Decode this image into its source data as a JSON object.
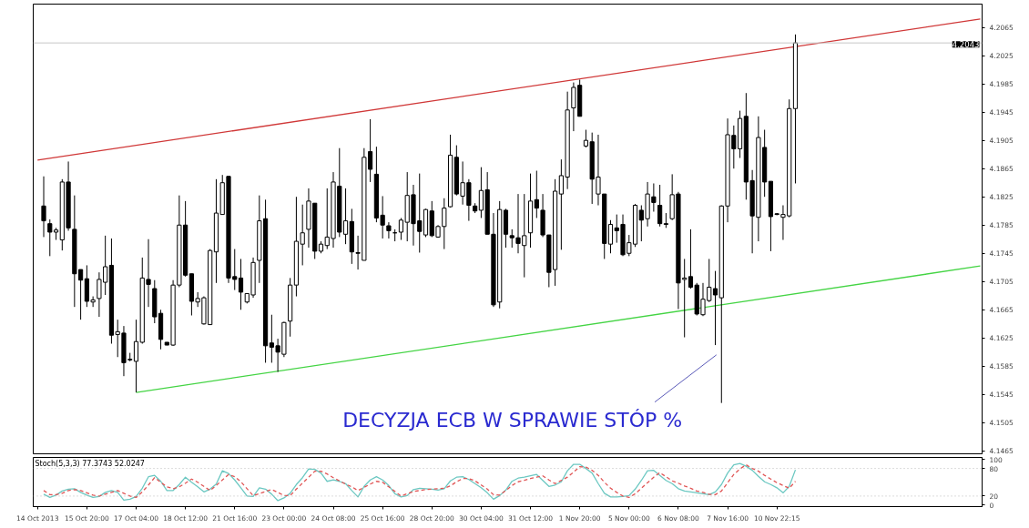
{
  "chart_data": [
    {
      "type": "candlestick",
      "tick_labels": "y",
      "grid": false,
      "ylim": [
        4.1461,
        4.2098
      ],
      "categories": [
        null,
        null,
        null,
        null,
        null,
        null,
        null,
        null,
        null,
        null,
        null,
        null,
        null,
        null,
        null,
        null,
        null,
        null,
        null,
        null,
        null,
        null,
        null,
        null,
        null,
        null,
        null,
        null,
        null,
        null,
        null,
        null,
        null,
        null,
        null,
        null,
        null,
        null,
        null,
        null,
        null,
        null,
        null,
        null,
        null,
        null,
        null,
        null,
        null,
        null,
        null,
        null,
        null,
        null,
        null,
        null,
        null,
        null,
        null,
        null,
        null,
        null,
        null,
        null,
        null,
        null,
        null,
        null,
        null,
        null,
        null,
        null,
        null,
        null,
        null,
        null,
        null,
        null,
        null,
        null,
        null,
        null,
        null,
        null,
        null,
        null,
        null,
        null,
        null,
        null,
        null,
        null,
        null,
        null,
        null,
        null,
        null,
        null,
        null,
        null,
        null,
        null,
        null,
        null,
        null,
        null,
        null,
        null,
        null,
        null,
        null,
        null,
        null,
        null,
        null,
        null,
        null,
        null,
        null,
        null,
        null,
        null,
        null,
        null,
        null,
        null,
        null,
        null,
        null,
        null,
        null,
        null,
        null,
        null,
        null,
        null,
        null,
        null,
        null,
        null,
        null,
        null,
        null,
        null,
        null,
        null,
        null,
        null,
        null,
        null,
        null,
        null,
        null,
        null
      ],
      "yticks": [
        4.2065,
        4.2025,
        4.1985,
        4.1945,
        4.1905,
        4.1865,
        4.1825,
        4.1785,
        4.1745,
        4.1705,
        4.1665,
        4.1625,
        4.1585,
        4.1545,
        4.1505,
        4.1465
      ],
      "ohlc": [
        null,
        [
          4.1812,
          4.1854,
          4.1768,
          4.1791
        ],
        [
          4.1787,
          4.1793,
          4.1741,
          4.1775
        ],
        [
          4.1775,
          4.1781,
          4.1764,
          4.1778
        ],
        [
          4.1764,
          4.185,
          4.1749,
          4.1846
        ],
        [
          4.1846,
          4.1875,
          4.1777,
          4.1781
        ],
        [
          4.1779,
          4.1827,
          4.1669,
          4.1716
        ],
        [
          4.1722,
          4.1722,
          4.1651,
          4.1707
        ],
        [
          4.1709,
          4.1728,
          4.1669,
          4.1677
        ],
        [
          4.1676,
          4.1684,
          4.1669,
          4.1679
        ],
        [
          4.1681,
          4.1718,
          4.1655,
          4.1708
        ],
        [
          4.1704,
          4.177,
          4.1686,
          4.1726
        ],
        [
          4.1728,
          4.1766,
          4.1617,
          4.1629
        ],
        [
          4.163,
          4.1651,
          4.1598,
          4.1634
        ],
        [
          4.1632,
          4.1642,
          4.1571,
          4.159
        ],
        [
          4.1594,
          4.1604,
          4.1592,
          4.1595
        ],
        [
          4.1592,
          4.1651,
          4.1548,
          4.162
        ],
        [
          4.1619,
          4.1739,
          4.1617,
          4.171
        ],
        [
          4.1708,
          4.1765,
          4.1669,
          4.1701
        ],
        [
          4.1695,
          4.1707,
          4.1646,
          4.1655
        ],
        [
          4.166,
          4.1665,
          4.1609,
          4.1623
        ],
        [
          4.1619,
          4.1619,
          4.1615,
          4.1615
        ],
        [
          4.1615,
          4.1707,
          4.1614,
          4.17
        ],
        [
          4.17,
          4.1827,
          4.1697,
          4.1785
        ],
        [
          4.1785,
          4.1819,
          4.1712,
          4.1714
        ],
        [
          4.1716,
          4.1716,
          4.1657,
          4.1677
        ],
        [
          4.1676,
          4.169,
          4.1669,
          4.1681
        ],
        [
          4.1645,
          4.1684,
          4.1644,
          4.1682
        ],
        [
          4.1644,
          4.1751,
          4.1644,
          4.1749
        ],
        [
          4.1747,
          4.185,
          4.1703,
          4.1802
        ],
        [
          4.18,
          4.1856,
          4.18,
          4.1845
        ],
        [
          4.1854,
          4.1854,
          4.1703,
          4.171
        ],
        [
          4.1712,
          4.1751,
          4.1693,
          4.1708
        ],
        [
          4.171,
          4.1737,
          4.1665,
          4.169
        ],
        [
          4.1676,
          4.1688,
          4.1674,
          4.1688
        ],
        [
          4.1686,
          4.1739,
          4.1682,
          4.1732
        ],
        [
          4.1735,
          4.1827,
          4.1703,
          4.1791
        ],
        [
          4.1794,
          4.1821,
          4.159,
          4.1614
        ],
        [
          4.1618,
          4.1658,
          4.159,
          4.1612
        ],
        [
          4.1614,
          4.1624,
          4.1577,
          4.1605
        ],
        [
          4.1602,
          4.1648,
          4.1598,
          4.1647
        ],
        [
          4.1649,
          4.171,
          4.1627,
          4.17
        ],
        [
          4.17,
          4.1825,
          4.1684,
          4.1762
        ],
        [
          4.1758,
          4.1814,
          4.1728,
          4.1774
        ],
        [
          4.1779,
          4.1837,
          4.1753,
          4.1819
        ],
        [
          4.1816,
          4.1816,
          4.1737,
          4.1748
        ],
        [
          4.1748,
          4.1762,
          4.1745,
          4.1758
        ],
        [
          4.1756,
          4.1837,
          4.1751,
          4.1768
        ],
        [
          4.1766,
          4.186,
          4.1753,
          4.1846
        ],
        [
          4.184,
          4.1894,
          4.1768,
          4.1775
        ],
        [
          4.1772,
          4.1837,
          4.1758,
          4.1791
        ],
        [
          4.179,
          4.1808,
          4.173,
          4.1747
        ],
        [
          4.1746,
          4.177,
          4.1722,
          4.1745
        ],
        [
          4.1735,
          4.1894,
          4.1735,
          4.1881
        ],
        [
          4.1889,
          4.1935,
          4.1846,
          4.1864
        ],
        [
          4.1857,
          4.1896,
          4.1789,
          4.1795
        ],
        [
          4.1799,
          4.1826,
          4.1766,
          4.1785
        ],
        [
          4.1784,
          4.1789,
          4.1766,
          4.1777
        ],
        [
          4.1774,
          4.1779,
          4.1762,
          4.1774
        ],
        [
          4.1775,
          4.1795,
          4.1764,
          4.1792
        ],
        [
          4.1789,
          4.186,
          4.1762,
          4.1827
        ],
        [
          4.1828,
          4.1842,
          4.1756,
          4.1787
        ],
        [
          4.1791,
          4.1858,
          4.1746,
          4.1776
        ],
        [
          4.1771,
          4.1808,
          4.1768,
          4.1807
        ],
        [
          4.1805,
          4.1819,
          4.1768,
          4.177
        ],
        [
          4.1768,
          4.1785,
          4.1767,
          4.1783
        ],
        [
          4.1783,
          4.1823,
          4.1751,
          4.1809
        ],
        [
          4.1811,
          4.1913,
          4.181,
          4.1884
        ],
        [
          4.1881,
          4.1898,
          4.1827,
          4.1829
        ],
        [
          4.1826,
          4.1875,
          4.1814,
          4.1845
        ],
        [
          4.1845,
          4.185,
          4.1791,
          4.1813
        ],
        [
          4.1812,
          4.1816,
          4.1802,
          4.1805
        ],
        [
          4.1806,
          4.1867,
          4.1795,
          4.1834
        ],
        [
          4.1835,
          4.186,
          4.1772,
          4.1772
        ],
        [
          4.1772,
          4.1802,
          4.1669,
          4.1672
        ],
        [
          4.1676,
          4.1819,
          4.1667,
          4.1807
        ],
        [
          4.1806,
          4.1808,
          4.1753,
          4.1772
        ],
        [
          4.177,
          4.1779,
          4.1753,
          4.1767
        ],
        [
          4.1767,
          4.1829,
          4.1745,
          4.1759
        ],
        [
          4.1756,
          4.1829,
          4.1711,
          4.177
        ],
        [
          4.1774,
          4.1858,
          4.1753,
          4.1819
        ],
        [
          4.1821,
          4.1862,
          4.1795,
          4.1809
        ],
        [
          4.1806,
          4.1829,
          4.1768,
          4.1771
        ],
        [
          4.1771,
          4.1771,
          4.1697,
          4.1718
        ],
        [
          4.1722,
          4.185,
          4.1699,
          4.1833
        ],
        [
          4.1829,
          4.1878,
          4.175,
          4.1855
        ],
        [
          4.1853,
          4.1974,
          4.1836,
          4.1948
        ],
        [
          4.1951,
          4.1987,
          4.1918,
          4.198
        ],
        [
          4.1983,
          4.1991,
          4.1939,
          4.1939
        ],
        [
          4.1897,
          4.192,
          4.1895,
          4.1905
        ],
        [
          4.1903,
          4.1916,
          4.1815,
          4.185
        ],
        [
          4.1829,
          4.1913,
          4.1813,
          4.1853
        ],
        [
          4.1829,
          4.1829,
          4.1737,
          4.1759
        ],
        [
          4.1758,
          4.1792,
          4.1745,
          4.1786
        ],
        [
          4.1781,
          4.18,
          4.176,
          4.1777
        ],
        [
          4.1786,
          4.18,
          4.1741,
          4.1743
        ],
        [
          4.1745,
          4.1771,
          4.1741,
          4.176
        ],
        [
          4.1758,
          4.1815,
          4.1754,
          4.1813
        ],
        [
          4.1806,
          4.1813,
          4.1762,
          4.1792
        ],
        [
          4.1794,
          4.1846,
          4.1783,
          4.1829
        ],
        [
          4.1825,
          4.1844,
          4.1804,
          4.1817
        ],
        [
          4.1813,
          4.1842,
          4.1783,
          4.1787
        ],
        [
          4.1787,
          4.1802,
          4.1781,
          4.1786
        ],
        [
          4.1794,
          4.1857,
          4.1792,
          4.1828
        ],
        [
          4.1829,
          4.1832,
          4.1666,
          4.1703
        ],
        [
          4.1708,
          4.1737,
          4.1626,
          4.171
        ],
        [
          4.1712,
          4.1779,
          4.1695,
          4.1697
        ],
        [
          4.17,
          4.1703,
          4.1657,
          4.1659
        ],
        [
          4.1658,
          4.1703,
          4.1656,
          4.168
        ],
        [
          4.1678,
          4.1737,
          4.1676,
          4.1697
        ],
        [
          4.1695,
          4.172,
          4.1615,
          4.1686
        ],
        [
          4.1682,
          4.1813,
          4.1533,
          4.1812
        ],
        [
          4.1812,
          4.1936,
          4.1789,
          4.1913
        ],
        [
          4.1912,
          4.1926,
          4.1865,
          4.1893
        ],
        [
          4.1893,
          4.1947,
          4.188,
          4.1936
        ],
        [
          4.1939,
          4.1972,
          4.1821,
          4.1846
        ],
        [
          4.1848,
          4.1863,
          4.1745,
          4.1798
        ],
        [
          4.1796,
          4.1939,
          4.1762,
          4.1909
        ],
        [
          4.1895,
          4.192,
          4.1825,
          4.1846
        ],
        [
          4.1847,
          4.1847,
          4.1748,
          4.1797
        ],
        [
          4.1801,
          4.1802,
          4.1799,
          4.18
        ],
        [
          4.1796,
          4.1813,
          4.1764,
          4.18
        ],
        [
          4.1798,
          4.1963,
          4.1796,
          4.195
        ],
        [
          4.195,
          4.2055,
          4.1844,
          4.2043
        ],
        null,
        null,
        null,
        null,
        null,
        null,
        null,
        null,
        null,
        null,
        null,
        null,
        null,
        null,
        null,
        null,
        null,
        null,
        null,
        null,
        null,
        null,
        null,
        null,
        null,
        null,
        null,
        null,
        null,
        null
      ],
      "series": [
        {
          "type": "line",
          "color": "#d03838",
          "values": [
            4.1877,
            null,
            null,
            null,
            null,
            null,
            null,
            null,
            null,
            null,
            null,
            null,
            null,
            null,
            null,
            null,
            null,
            null,
            null,
            null,
            null,
            null,
            null,
            null,
            null,
            null,
            null,
            null,
            null,
            null,
            null,
            null,
            null,
            null,
            null,
            null,
            null,
            null,
            null,
            null,
            null,
            null,
            null,
            null,
            null,
            null,
            null,
            null,
            null,
            null,
            null,
            null,
            null,
            null,
            null,
            null,
            null,
            null,
            null,
            null,
            null,
            null,
            null,
            null,
            null,
            null,
            null,
            null,
            null,
            null,
            null,
            null,
            null,
            null,
            null,
            null,
            null,
            null,
            null,
            null,
            null,
            null,
            null,
            null,
            null,
            null,
            null,
            null,
            null,
            null,
            null,
            null,
            null,
            null,
            null,
            null,
            null,
            null,
            null,
            null,
            null,
            null,
            null,
            null,
            null,
            null,
            null,
            null,
            null,
            null,
            null,
            null,
            null,
            null,
            null,
            null,
            null,
            null,
            null,
            null,
            null,
            null,
            null,
            null,
            null,
            null,
            null,
            null,
            null,
            null,
            null,
            null,
            null,
            null,
            null,
            null,
            null,
            null,
            null,
            null,
            null,
            null,
            null,
            null,
            null,
            null,
            null,
            null,
            null,
            null,
            null,
            null,
            null,
            4.2077
          ]
        },
        {
          "type": "line",
          "color": "#44d444",
          "values": [
            null,
            null,
            null,
            null,
            null,
            null,
            null,
            null,
            null,
            null,
            null,
            null,
            null,
            null,
            null,
            null,
            4.1548,
            null,
            null,
            null,
            null,
            null,
            null,
            null,
            null,
            null,
            null,
            null,
            null,
            null,
            null,
            null,
            null,
            null,
            null,
            null,
            null,
            null,
            null,
            null,
            null,
            null,
            null,
            null,
            null,
            null,
            null,
            null,
            null,
            null,
            null,
            null,
            null,
            null,
            null,
            null,
            null,
            null,
            null,
            null,
            null,
            null,
            null,
            null,
            null,
            null,
            null,
            null,
            null,
            null,
            null,
            null,
            null,
            null,
            null,
            null,
            null,
            null,
            null,
            null,
            null,
            null,
            null,
            null,
            null,
            null,
            null,
            null,
            null,
            null,
            null,
            null,
            null,
            null,
            null,
            null,
            null,
            null,
            null,
            null,
            null,
            null,
            null,
            null,
            null,
            null,
            null,
            null,
            null,
            null,
            null,
            null,
            null,
            null,
            null,
            null,
            null,
            null,
            null,
            null,
            null,
            null,
            null,
            null,
            null,
            null,
            null,
            null,
            null,
            null,
            null,
            null,
            null,
            null,
            null,
            null,
            null,
            null,
            null,
            null,
            null,
            null,
            null,
            null,
            null,
            null,
            null,
            null,
            null,
            null,
            null,
            null,
            null,
            4.1727
          ]
        }
      ],
      "ref_lines": [
        {
          "axis": "y",
          "value": 4.2043,
          "label": "4.2043",
          "color": "#c8c8c8",
          "line_style": "solid"
        }
      ],
      "annotations": [
        "DECYZJA ECB W SPRAWIE STÓP %"
      ]
    },
    {
      "type": "line",
      "title": "Stoch(5,3,3) 77.3743 52.0247",
      "grid": false,
      "ylim": [
        -3,
        104
      ],
      "categories": [
        "14 Oct 2013",
        null,
        null,
        null,
        null,
        null,
        null,
        null,
        "15 Oct 20:00",
        null,
        null,
        null,
        null,
        null,
        null,
        null,
        "17 Oct 04:00",
        null,
        null,
        null,
        null,
        null,
        null,
        null,
        "18 Oct 12:00",
        null,
        null,
        null,
        null,
        null,
        null,
        null,
        "21 Oct 16:00",
        null,
        null,
        null,
        null,
        null,
        null,
        null,
        "23 Oct 00:00",
        null,
        null,
        null,
        null,
        null,
        null,
        null,
        "24 Oct 08:00",
        null,
        null,
        null,
        null,
        null,
        null,
        null,
        "25 Oct 16:00",
        null,
        null,
        null,
        null,
        null,
        null,
        null,
        "28 Oct 20:00",
        null,
        null,
        null,
        null,
        null,
        null,
        null,
        "30 Oct 04:00",
        null,
        null,
        null,
        null,
        null,
        null,
        null,
        "31 Oct 12:00",
        null,
        null,
        null,
        null,
        null,
        null,
        null,
        "1 Nov 20:00",
        null,
        null,
        null,
        null,
        null,
        null,
        null,
        "5 Nov 00:00",
        null,
        null,
        null,
        null,
        null,
        null,
        null,
        "6 Nov 08:00",
        null,
        null,
        null,
        null,
        null,
        null,
        null,
        "7 Nov 16:00",
        null,
        null,
        null,
        null,
        null,
        null,
        null,
        "10 Nov 22:15",
        null,
        null,
        null,
        null,
        null,
        null,
        null,
        null,
        null,
        null,
        null,
        null,
        null,
        null,
        null,
        null,
        null,
        null,
        null,
        null,
        null,
        null,
        null,
        null,
        null,
        null,
        null,
        null,
        null,
        null,
        null,
        null,
        null
      ],
      "yticks": [
        100,
        80,
        20,
        0
      ],
      "series": [
        {
          "color": "#6cc8c2",
          "line_style": "solid",
          "values": [
            null,
            24,
            17,
            22,
            31,
            35,
            36,
            28,
            22,
            17,
            19,
            28,
            32,
            28,
            11,
            13,
            19,
            37,
            62,
            65,
            52,
            32,
            32,
            45,
            61,
            50,
            40,
            29,
            35,
            46,
            75,
            69,
            55,
            38,
            20,
            19,
            38,
            35,
            24,
            10,
            16,
            26,
            45,
            60,
            79,
            78,
            70,
            52,
            55,
            52,
            47,
            32,
            18,
            41,
            55,
            62,
            55,
            43,
            25,
            18,
            21,
            34,
            37,
            36,
            35,
            33,
            36,
            53,
            61,
            62,
            56,
            47,
            38,
            27,
            13,
            21,
            33,
            52,
            59,
            61,
            64,
            67,
            54,
            41,
            44,
            51,
            75,
            89,
            89,
            80,
            70,
            47,
            26,
            18,
            18,
            19,
            21,
            35,
            54,
            75,
            76,
            65,
            54,
            47,
            36,
            31,
            29,
            27,
            25,
            23,
            29,
            45,
            70,
            88,
            91,
            85,
            76,
            63,
            51,
            45,
            38,
            27,
            41,
            77,
            null,
            null,
            null,
            null,
            null,
            null,
            null,
            null,
            null,
            null,
            null,
            null,
            null,
            null,
            null,
            null,
            null,
            null,
            null,
            null,
            null,
            null,
            null,
            null,
            null,
            null,
            null,
            null,
            null,
            null
          ]
        },
        {
          "color": "#e05555",
          "line_style": "dashed",
          "values": [
            null,
            32,
            23,
            23,
            26,
            32,
            34,
            32,
            27,
            22,
            20,
            24,
            28,
            32,
            26,
            20,
            17,
            29,
            44,
            60,
            50,
            40,
            36,
            40,
            48,
            57,
            50,
            41,
            32,
            43,
            55,
            67,
            62,
            51,
            36,
            21,
            25,
            30,
            34,
            28,
            21,
            21,
            35,
            48,
            61,
            74,
            74,
            68,
            60,
            53,
            46,
            40,
            32,
            39,
            46,
            52,
            50,
            40,
            30,
            20,
            25,
            30,
            32,
            34,
            35,
            36,
            37,
            42,
            51,
            58,
            58,
            53,
            44,
            35,
            23,
            22,
            32,
            43,
            51,
            54,
            58,
            61,
            64,
            55,
            47,
            54,
            61,
            72,
            84,
            83,
            76,
            65,
            50,
            37,
            28,
            20,
            17,
            25,
            37,
            49,
            61,
            71,
            62,
            53,
            48,
            42,
            37,
            31,
            28,
            24,
            23,
            31,
            49,
            67,
            79,
            88,
            80,
            74,
            65,
            57,
            49,
            43,
            37,
            52,
            null,
            null,
            null,
            null,
            null,
            null,
            null,
            null,
            null,
            null,
            null,
            null,
            null,
            null,
            null,
            null,
            null,
            null,
            null,
            null,
            null,
            null,
            null,
            null,
            null,
            null,
            null,
            null,
            null,
            null
          ]
        }
      ],
      "ref_lines": [
        {
          "axis": "y",
          "value": 80,
          "color": "#b8b8b8",
          "line_style": "dotted"
        },
        {
          "axis": "y",
          "value": 20,
          "color": "#b8b8b8",
          "line_style": "dotted"
        }
      ]
    }
  ]
}
